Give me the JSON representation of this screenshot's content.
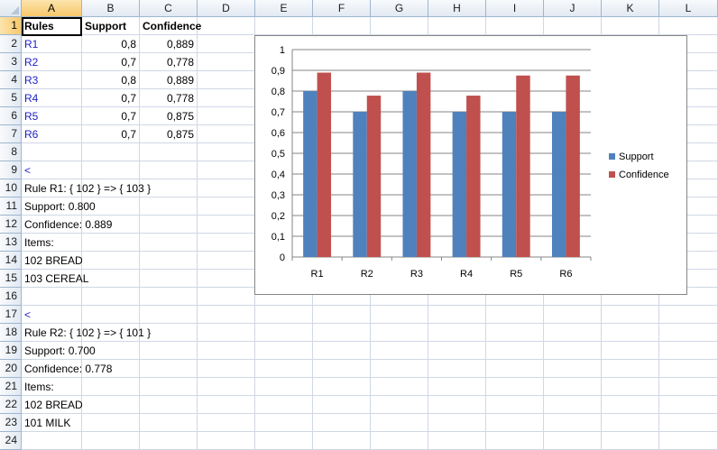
{
  "columns": [
    "A",
    "B",
    "C",
    "D",
    "E",
    "F",
    "G",
    "H",
    "I",
    "J",
    "K",
    "L"
  ],
  "rows": [
    "1",
    "2",
    "3",
    "4",
    "5",
    "6",
    "7",
    "8",
    "9",
    "10",
    "11",
    "12",
    "13",
    "14",
    "15",
    "16",
    "17",
    "18",
    "19",
    "20",
    "21",
    "22",
    "23",
    "24"
  ],
  "table": {
    "headers": [
      "Rules",
      "Support",
      "Confidence"
    ],
    "rows": [
      {
        "rule": "R1",
        "support": "0,8",
        "confidence": "0,889"
      },
      {
        "rule": "R2",
        "support": "0,7",
        "confidence": "0,778"
      },
      {
        "rule": "R3",
        "support": "0,8",
        "confidence": "0,889"
      },
      {
        "rule": "R4",
        "support": "0,7",
        "confidence": "0,778"
      },
      {
        "rule": "R5",
        "support": "0,7",
        "confidence": "0,875"
      },
      {
        "rule": "R6",
        "support": "0,7",
        "confidence": "0,875"
      }
    ]
  },
  "text_cells": [
    {
      "row": 9,
      "text": "<",
      "blue": true
    },
    {
      "row": 10,
      "text": "Rule R1: { 102 } => { 103 }"
    },
    {
      "row": 11,
      "text": "Support: 0.800"
    },
    {
      "row": 12,
      "text": "Confidence: 0.889"
    },
    {
      "row": 13,
      "text": "Items:"
    },
    {
      "row": 14,
      "text": "102 BREAD"
    },
    {
      "row": 15,
      "text": "103 CEREAL"
    },
    {
      "row": 17,
      "text": "<",
      "blue": true
    },
    {
      "row": 18,
      "text": "Rule R2: { 102 } => { 101 }"
    },
    {
      "row": 19,
      "text": "Support: 0.700"
    },
    {
      "row": 20,
      "text": "Confidence: 0.778"
    },
    {
      "row": 21,
      "text": "Items:"
    },
    {
      "row": 22,
      "text": "102 BREAD"
    },
    {
      "row": 23,
      "text": "101 MILK"
    }
  ],
  "colors": {
    "support": "#4f81bd",
    "confidence": "#c0504d",
    "grid": "#d0d7e5",
    "header_selected": "#f8c86b"
  },
  "chart_data": {
    "type": "bar",
    "categories": [
      "R1",
      "R2",
      "R3",
      "R4",
      "R5",
      "R6"
    ],
    "series": [
      {
        "name": "Support",
        "values": [
          0.8,
          0.7,
          0.8,
          0.7,
          0.7,
          0.7
        ]
      },
      {
        "name": "Confidence",
        "values": [
          0.889,
          0.778,
          0.889,
          0.778,
          0.875,
          0.875
        ]
      }
    ],
    "y_ticks": [
      "0",
      "0,1",
      "0,2",
      "0,3",
      "0,4",
      "0,5",
      "0,6",
      "0,7",
      "0,8",
      "0,9",
      "1"
    ],
    "ylim": [
      0,
      1
    ],
    "grid": true,
    "legend_position": "right"
  }
}
